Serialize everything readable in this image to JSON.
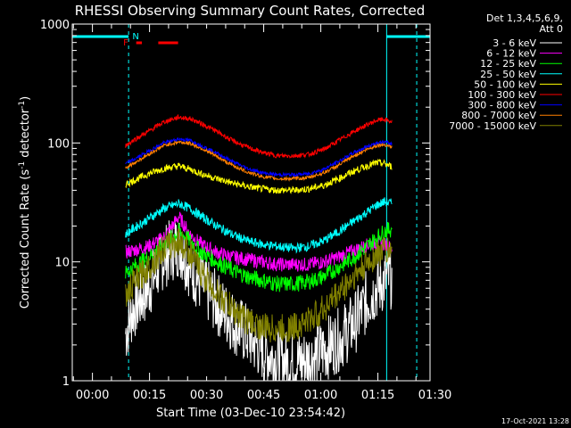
{
  "chart_data": {
    "type": "line",
    "title": "RHESSI Observing Summary Count Rates, Corrected",
    "xlabel": "Start Time (03-Dec-10 23:54:42)",
    "ylabel": "Corrected Count Rate (s",
    "ylabel_sup1": "-1",
    "ylabel_mid": " detector",
    "ylabel_sup2": "-1",
    "ylabel_end": ")",
    "y_scale": "log",
    "ylim": [
      1,
      1000
    ],
    "xlim_minutes": [
      0,
      94
    ],
    "x_ticks": [
      {
        "min": 5.3,
        "label": "00:00"
      },
      {
        "min": 20.3,
        "label": "00:15"
      },
      {
        "min": 35.3,
        "label": "00:30"
      },
      {
        "min": 50.3,
        "label": "00:45"
      },
      {
        "min": 65.3,
        "label": "01:00"
      },
      {
        "min": 80.3,
        "label": "01:15"
      },
      {
        "min": 95.3,
        "label": "01:30"
      }
    ],
    "y_ticks": [
      {
        "value": 1,
        "label": "1"
      },
      {
        "value": 10,
        "label": "10"
      },
      {
        "value": 100,
        "label": "100"
      },
      {
        "value": 1000,
        "label": "1000"
      }
    ],
    "legend_header": [
      "Det 1,3,4,5,6,9,",
      "Att 0"
    ],
    "legend_position": "right",
    "series": [
      {
        "name": "3 - 6 keV",
        "color": "#ffffff",
        "x": [
          14,
          16,
          20,
          24,
          28,
          31,
          34,
          38,
          42,
          46,
          50,
          54,
          58,
          62,
          66,
          70,
          74,
          78,
          80,
          82,
          84
        ],
        "y": [
          2.5,
          4,
          6,
          11,
          14,
          9,
          6.5,
          4.5,
          3.2,
          2.4,
          1.8,
          1.5,
          1.4,
          1.5,
          1.8,
          2.2,
          3,
          5,
          6,
          7,
          7.5
        ]
      },
      {
        "name": "6 - 12 keV",
        "color": "#ff00ff",
        "x": [
          14,
          16,
          20,
          24,
          28,
          31,
          34,
          38,
          42,
          46,
          50,
          54,
          58,
          62,
          66,
          70,
          74,
          78,
          80,
          82,
          84
        ],
        "y": [
          12,
          12.5,
          13.5,
          16,
          24,
          17,
          14,
          12,
          11,
          10.5,
          10,
          9.5,
          9.5,
          9.5,
          10,
          11,
          12.5,
          14,
          14.5,
          14,
          13
        ]
      },
      {
        "name": "12 - 25 keV",
        "color": "#00ff00",
        "x": [
          14,
          16,
          20,
          24,
          28,
          31,
          34,
          38,
          42,
          46,
          50,
          54,
          58,
          62,
          66,
          70,
          74,
          78,
          80,
          82,
          84
        ],
        "y": [
          8,
          9,
          11,
          14,
          18,
          15,
          12,
          10,
          8.5,
          7.5,
          7,
          6.5,
          6.5,
          6.8,
          7.5,
          9,
          11,
          14,
          16,
          18,
          19
        ]
      },
      {
        "name": "25 - 50 keV",
        "color": "#00ffff",
        "x": [
          14,
          16,
          20,
          24,
          28,
          31,
          34,
          38,
          42,
          46,
          50,
          54,
          58,
          62,
          66,
          70,
          74,
          78,
          80,
          82,
          84
        ],
        "y": [
          17,
          19,
          23,
          28,
          31,
          28,
          24,
          20,
          17,
          15,
          14,
          13.5,
          13,
          13.5,
          15,
          18,
          22,
          27,
          30,
          32,
          31
        ]
      },
      {
        "name": "50 - 100 keV",
        "color": "#ffff00",
        "x": [
          14,
          16,
          20,
          24,
          28,
          31,
          34,
          38,
          42,
          46,
          50,
          54,
          58,
          62,
          66,
          70,
          74,
          78,
          80,
          82,
          84
        ],
        "y": [
          45,
          48,
          55,
          61,
          64,
          60,
          55,
          50,
          46,
          43,
          41,
          40,
          40,
          41,
          44,
          50,
          58,
          65,
          68,
          67,
          63
        ]
      },
      {
        "name": "100 - 300 keV",
        "color": "#ff0000",
        "x": [
          14,
          16,
          20,
          24,
          28,
          31,
          34,
          38,
          42,
          46,
          50,
          54,
          58,
          62,
          66,
          70,
          74,
          78,
          80,
          82,
          84
        ],
        "y": [
          95,
          105,
          125,
          150,
          165,
          160,
          145,
          125,
          105,
          92,
          83,
          78,
          78,
          80,
          88,
          105,
          125,
          145,
          155,
          158,
          150
        ]
      },
      {
        "name": "300 - 800 keV",
        "color": "#0000ff",
        "x": [
          14,
          16,
          20,
          24,
          28,
          31,
          34,
          38,
          42,
          46,
          50,
          54,
          58,
          62,
          66,
          70,
          74,
          78,
          80,
          82,
          84
        ],
        "y": [
          67,
          72,
          85,
          100,
          108,
          105,
          95,
          82,
          70,
          61,
          56,
          54,
          54,
          55,
          60,
          70,
          83,
          95,
          100,
          102,
          98
        ]
      },
      {
        "name": "800 - 7000 keV",
        "color": "#ff8000",
        "x": [
          14,
          16,
          20,
          24,
          28,
          31,
          34,
          38,
          42,
          46,
          50,
          54,
          58,
          62,
          66,
          70,
          74,
          78,
          80,
          82,
          84
        ],
        "y": [
          62,
          67,
          80,
          95,
          102,
          99,
          90,
          77,
          65,
          57,
          52,
          50,
          50,
          51,
          56,
          65,
          78,
          90,
          95,
          97,
          93
        ]
      },
      {
        "name": "7000 - 15000 keV",
        "color": "#808000",
        "x": [
          14,
          16,
          20,
          24,
          28,
          31,
          34,
          38,
          42,
          46,
          50,
          54,
          58,
          62,
          66,
          70,
          74,
          78,
          80,
          82,
          84
        ],
        "y": [
          5,
          6.5,
          9,
          13,
          15,
          12,
          8,
          5.5,
          4,
          3.2,
          2.8,
          2.7,
          2.8,
          3.2,
          4,
          5.5,
          7.5,
          10,
          11.5,
          12.5,
          12.5
        ]
      }
    ],
    "annotations": {
      "att_line_color": "#00ffff",
      "markers": [
        {
          "label": "N",
          "color": "#00ffff"
        },
        {
          "label": "F",
          "color": "#ff0000"
        }
      ],
      "cyan_bars": [
        [
          0,
          14.8
        ],
        [
          82.6,
          94
        ]
      ],
      "red_bars": [
        [
          16.8,
          18.3
        ],
        [
          22.6,
          27.8
        ]
      ],
      "night_lines": [
        14.8,
        90.5
      ],
      "day_lines": [
        82.6,
        0
      ],
      "night_marker_x": 15.8,
      "flare_marker_x": 14.8
    }
  },
  "footer_date": "17-Oct-2021 13:28"
}
